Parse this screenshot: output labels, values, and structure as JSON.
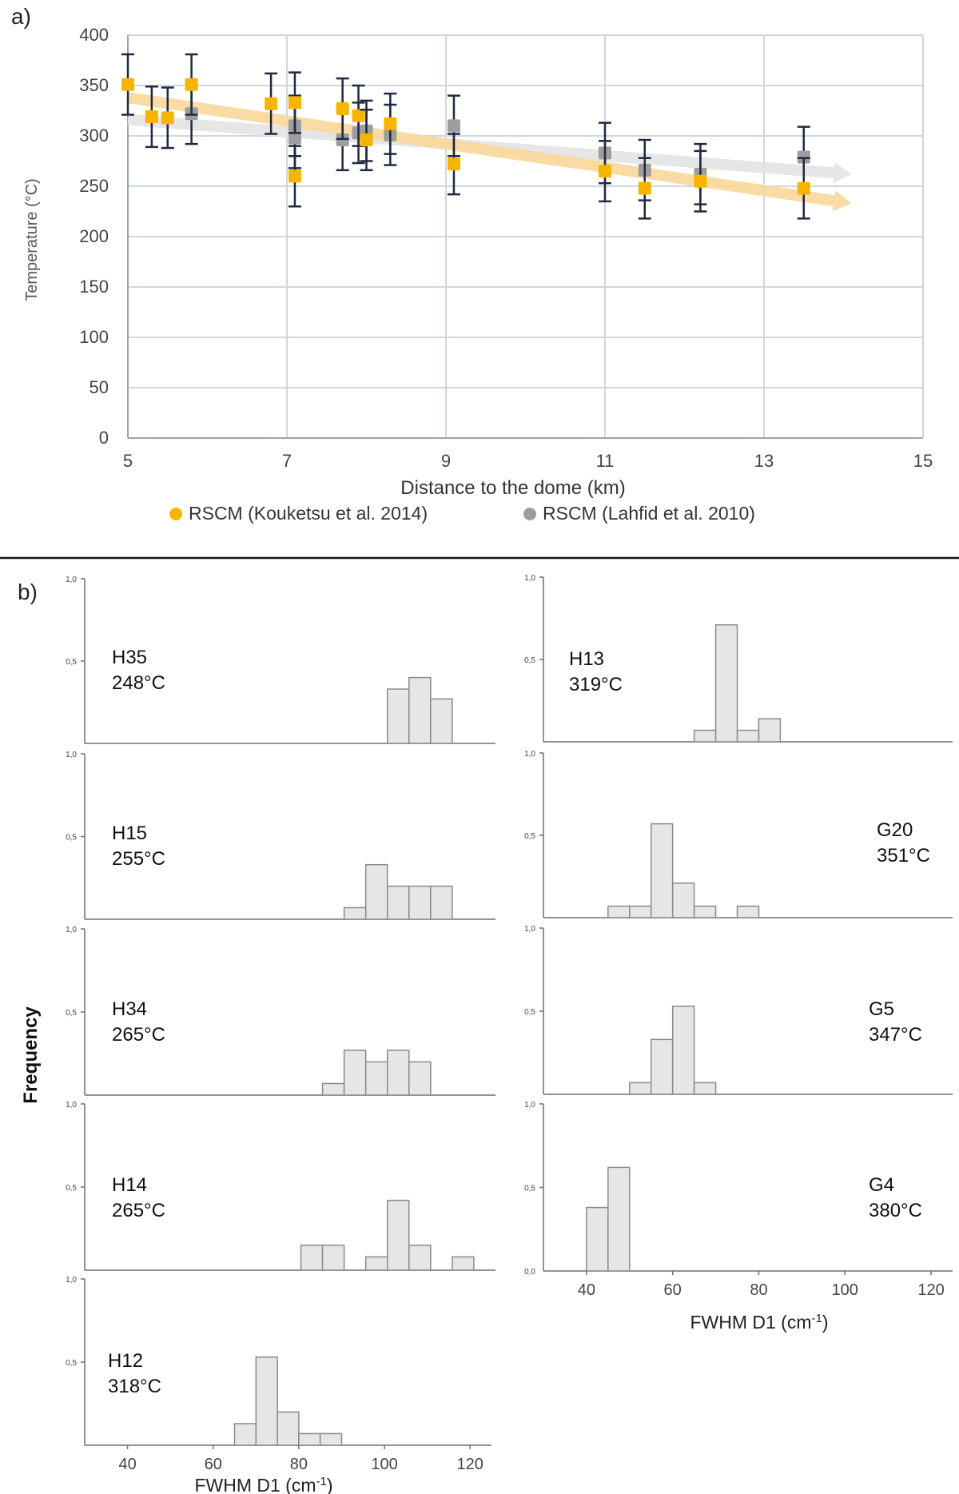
{
  "chart_data": [
    {
      "panel": "a)",
      "type": "scatter",
      "xlabel": "Distance to the dome (km)",
      "ylabel": "Temperature (°C)",
      "xlim": [
        5,
        15
      ],
      "ylim": [
        0,
        400
      ],
      "xticks": [
        5,
        7,
        9,
        11,
        13,
        15
      ],
      "yticks": [
        0,
        50,
        100,
        150,
        200,
        250,
        300,
        350,
        400
      ],
      "legend_position": "bottom",
      "series": [
        {
          "name": "RSCM (Kouketsu et al. 2014)",
          "color": "#f7b500",
          "trend_color": "#f9d79a",
          "trend": {
            "x": [
              5.0,
              14.1
            ],
            "y": [
              338,
              233
            ]
          },
          "points": [
            {
              "x": 5.0,
              "y": 351,
              "err": 30
            },
            {
              "x": 5.3,
              "y": 319,
              "err": 30
            },
            {
              "x": 5.5,
              "y": 318,
              "err": 30
            },
            {
              "x": 5.8,
              "y": 351,
              "err": 30
            },
            {
              "x": 6.8,
              "y": 332,
              "err": 30
            },
            {
              "x": 7.1,
              "y": 333,
              "err": 30
            },
            {
              "x": 7.1,
              "y": 260,
              "err": 30
            },
            {
              "x": 7.7,
              "y": 327,
              "err": 30
            },
            {
              "x": 7.9,
              "y": 320,
              "err": 30
            },
            {
              "x": 8.0,
              "y": 296,
              "err": 30
            },
            {
              "x": 8.3,
              "y": 312,
              "err": 30
            },
            {
              "x": 9.1,
              "y": 272,
              "err": 30
            },
            {
              "x": 11.0,
              "y": 265,
              "err": 30
            },
            {
              "x": 11.5,
              "y": 248,
              "err": 30
            },
            {
              "x": 12.2,
              "y": 255,
              "err": 30
            },
            {
              "x": 13.5,
              "y": 248,
              "err": 30
            }
          ]
        },
        {
          "name": "RSCM (Lahfid et al. 2010)",
          "color": "#9d9d9d",
          "trend_color": "#e3e3e3",
          "trend": {
            "x": [
              5.0,
              14.1
            ],
            "y": [
              316,
              262
            ]
          },
          "points": [
            {
              "x": 5.8,
              "y": 322,
              "err": 30
            },
            {
              "x": 7.1,
              "y": 310,
              "err": 30
            },
            {
              "x": 7.1,
              "y": 298,
              "err": 30
            },
            {
              "x": 7.7,
              "y": 296,
              "err": 30
            },
            {
              "x": 7.9,
              "y": 303,
              "err": 30
            },
            {
              "x": 8.0,
              "y": 305,
              "err": 30
            },
            {
              "x": 8.3,
              "y": 301,
              "err": 30
            },
            {
              "x": 9.1,
              "y": 310,
              "err": 30
            },
            {
              "x": 11.0,
              "y": 283,
              "err": 30
            },
            {
              "x": 11.5,
              "y": 266,
              "err": 30
            },
            {
              "x": 12.2,
              "y": 262,
              "err": 30
            },
            {
              "x": 13.5,
              "y": 279,
              "err": 30
            }
          ]
        }
      ]
    },
    {
      "panel": "b)",
      "type": "bar",
      "ylabel": "Frequency",
      "xlabel": "FWHM D1 (cm",
      "xlabel_sup": "-1",
      "xlabel_end": ")",
      "xlim": [
        30,
        125
      ],
      "ylim": [
        0,
        1
      ],
      "xticks": [
        "40",
        "60",
        "80",
        "100",
        "120"
      ],
      "yticks": [
        "1,0",
        "0,5"
      ],
      "bin_width": 5,
      "histograms": [
        {
          "sample": "H35",
          "temp": "248°C",
          "bins": [
            {
              "x": 100,
              "v": 0.33
            },
            {
              "x": 105,
              "v": 0.4
            },
            {
              "x": 110,
              "v": 0.27
            }
          ]
        },
        {
          "sample": "H15",
          "temp": "255°C",
          "bins": [
            {
              "x": 90,
              "v": 0.07
            },
            {
              "x": 95,
              "v": 0.33
            },
            {
              "x": 100,
              "v": 0.2
            },
            {
              "x": 105,
              "v": 0.2
            },
            {
              "x": 110,
              "v": 0.2
            }
          ]
        },
        {
          "sample": "H34",
          "temp": "265°C",
          "bins": [
            {
              "x": 85,
              "v": 0.07
            },
            {
              "x": 90,
              "v": 0.27
            },
            {
              "x": 95,
              "v": 0.2
            },
            {
              "x": 100,
              "v": 0.27
            },
            {
              "x": 105,
              "v": 0.2
            }
          ]
        },
        {
          "sample": "H14",
          "temp": "265°C",
          "bins": [
            {
              "x": 80,
              "v": 0.15
            },
            {
              "x": 85,
              "v": 0.15
            },
            {
              "x": 95,
              "v": 0.08
            },
            {
              "x": 100,
              "v": 0.42
            },
            {
              "x": 105,
              "v": 0.15
            },
            {
              "x": 115,
              "v": 0.08
            }
          ]
        },
        {
          "sample": "H12",
          "temp": "318°C",
          "bins": [
            {
              "x": 65,
              "v": 0.13
            },
            {
              "x": 70,
              "v": 0.53
            },
            {
              "x": 75,
              "v": 0.2
            },
            {
              "x": 80,
              "v": 0.07
            },
            {
              "x": 85,
              "v": 0.07
            }
          ]
        },
        {
          "sample": "H13",
          "temp": "319°C",
          "bins": [
            {
              "x": 65,
              "v": 0.07
            },
            {
              "x": 70,
              "v": 0.71
            },
            {
              "x": 75,
              "v": 0.07
            },
            {
              "x": 80,
              "v": 0.14
            }
          ]
        },
        {
          "sample": "G20",
          "temp": "351°C",
          "bins": [
            {
              "x": 45,
              "v": 0.07
            },
            {
              "x": 50,
              "v": 0.07
            },
            {
              "x": 55,
              "v": 0.57
            },
            {
              "x": 60,
              "v": 0.21
            },
            {
              "x": 65,
              "v": 0.07
            },
            {
              "x": 75,
              "v": 0.07
            }
          ]
        },
        {
          "sample": "G5",
          "temp": "347°C",
          "bins": [
            {
              "x": 50,
              "v": 0.07
            },
            {
              "x": 55,
              "v": 0.33
            },
            {
              "x": 60,
              "v": 0.53
            },
            {
              "x": 65,
              "v": 0.07
            }
          ]
        },
        {
          "sample": "G4",
          "temp": "380°C",
          "bins": [
            {
              "x": 40,
              "v": 0.38
            },
            {
              "x": 45,
              "v": 0.62
            }
          ],
          "show_zero_tick": true,
          "zero_tick": "0,0"
        }
      ]
    }
  ]
}
